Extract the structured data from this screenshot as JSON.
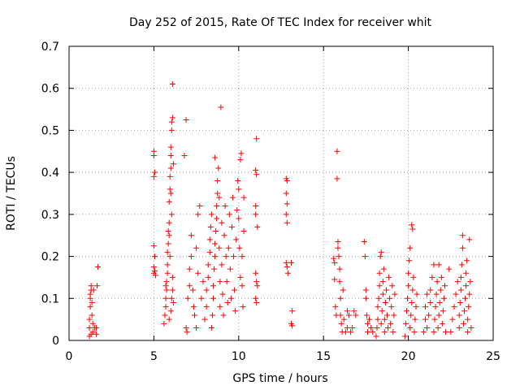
{
  "chart_data": {
    "type": "scatter",
    "title": "Day 252 of 2015, Rate Of TEC Index for receiver whit",
    "xlabel": "GPS time / hours",
    "ylabel": "ROTI / TECUs",
    "xlim": [
      0,
      25
    ],
    "ylim": [
      0,
      0.7
    ],
    "x_ticks": [
      "0",
      "5",
      "10",
      "15",
      "20",
      "25"
    ],
    "y_ticks": [
      "0",
      "0.1",
      "0.2",
      "0.3",
      "0.4",
      "0.5",
      "0.6",
      "0.7"
    ],
    "grid": true,
    "marker": "+",
    "colors": {
      "points": "#ff0000",
      "grid": "#a0a0a0",
      "axes": "#000000"
    },
    "points": [
      [
        1.2,
        0.01
      ],
      [
        1.2,
        0.03
      ],
      [
        1.2,
        0.05
      ],
      [
        1.25,
        0.08
      ],
      [
        1.25,
        0.1
      ],
      [
        1.3,
        0.12
      ],
      [
        1.3,
        0.13
      ],
      [
        1.35,
        0.09
      ],
      [
        1.35,
        0.06
      ],
      [
        1.4,
        0.04
      ],
      [
        1.4,
        0.02
      ],
      [
        1.3,
        0.015
      ],
      [
        1.25,
        0.11
      ],
      [
        1.45,
        0.12
      ],
      [
        1.5,
        0.03
      ],
      [
        1.6,
        0.015
      ],
      [
        1.6,
        0.03
      ],
      [
        1.65,
        0.13
      ],
      [
        1.7,
        0.175
      ],
      [
        5.0,
        0.45
      ],
      [
        5.0,
        0.44
      ],
      [
        5.0,
        0.39
      ],
      [
        5.05,
        0.4
      ],
      [
        5.0,
        0.225
      ],
      [
        5.05,
        0.2
      ],
      [
        5.0,
        0.175
      ],
      [
        5.05,
        0.165
      ],
      [
        5.0,
        0.16
      ],
      [
        5.1,
        0.155
      ],
      [
        5.6,
        0.04
      ],
      [
        5.65,
        0.06
      ],
      [
        5.7,
        0.08
      ],
      [
        5.7,
        0.1
      ],
      [
        5.75,
        0.12
      ],
      [
        5.75,
        0.14
      ],
      [
        5.8,
        0.16
      ],
      [
        5.8,
        0.18
      ],
      [
        5.8,
        0.21
      ],
      [
        5.85,
        0.23
      ],
      [
        5.85,
        0.26
      ],
      [
        5.9,
        0.28
      ],
      [
        5.9,
        0.33
      ],
      [
        5.95,
        0.36
      ],
      [
        5.95,
        0.39
      ],
      [
        6.0,
        0.41
      ],
      [
        6.0,
        0.44
      ],
      [
        6.0,
        0.46
      ],
      [
        6.05,
        0.5
      ],
      [
        6.05,
        0.52
      ],
      [
        6.1,
        0.53
      ],
      [
        6.1,
        0.61
      ],
      [
        6.0,
        0.35
      ],
      [
        6.05,
        0.3
      ],
      [
        5.9,
        0.25
      ],
      [
        5.95,
        0.2
      ],
      [
        6.1,
        0.15
      ],
      [
        6.05,
        0.1
      ],
      [
        6.0,
        0.07
      ],
      [
        5.9,
        0.05
      ],
      [
        6.1,
        0.12
      ],
      [
        5.7,
        0.13
      ],
      [
        6.15,
        0.09
      ],
      [
        6.15,
        0.42
      ],
      [
        6.8,
        0.44
      ],
      [
        6.9,
        0.525
      ],
      [
        6.9,
        0.03
      ],
      [
        6.95,
        0.02
      ],
      [
        7.0,
        0.1
      ],
      [
        7.1,
        0.13
      ],
      [
        7.1,
        0.17
      ],
      [
        7.2,
        0.2
      ],
      [
        7.2,
        0.25
      ],
      [
        7.3,
        0.12
      ],
      [
        7.35,
        0.08
      ],
      [
        7.4,
        0.06
      ],
      [
        7.5,
        0.03
      ],
      [
        7.6,
        0.3
      ],
      [
        7.7,
        0.32
      ],
      [
        7.5,
        0.22
      ],
      [
        7.6,
        0.16
      ],
      [
        7.8,
        0.1
      ],
      [
        7.9,
        0.14
      ],
      [
        8.0,
        0.05
      ],
      [
        8.1,
        0.08
      ],
      [
        8.1,
        0.12
      ],
      [
        8.2,
        0.15
      ],
      [
        8.2,
        0.18
      ],
      [
        8.3,
        0.21
      ],
      [
        8.3,
        0.24
      ],
      [
        8.35,
        0.27
      ],
      [
        8.4,
        0.3
      ],
      [
        8.4,
        0.03
      ],
      [
        8.45,
        0.06
      ],
      [
        8.5,
        0.1
      ],
      [
        8.5,
        0.13
      ],
      [
        8.55,
        0.17
      ],
      [
        8.6,
        0.2
      ],
      [
        8.6,
        0.23
      ],
      [
        8.65,
        0.26
      ],
      [
        8.7,
        0.29
      ],
      [
        8.7,
        0.32
      ],
      [
        8.75,
        0.35
      ],
      [
        8.75,
        0.38
      ],
      [
        8.8,
        0.41
      ],
      [
        8.6,
        0.435
      ],
      [
        8.85,
        0.34
      ],
      [
        8.85,
        0.22
      ],
      [
        8.9,
        0.14
      ],
      [
        8.9,
        0.08
      ],
      [
        8.95,
        0.555
      ],
      [
        9.0,
        0.28
      ],
      [
        9.0,
        0.18
      ],
      [
        9.05,
        0.11
      ],
      [
        9.1,
        0.06
      ],
      [
        9.15,
        0.25
      ],
      [
        9.2,
        0.32
      ],
      [
        9.25,
        0.2
      ],
      [
        9.3,
        0.14
      ],
      [
        9.35,
        0.09
      ],
      [
        9.4,
        0.22
      ],
      [
        9.45,
        0.3
      ],
      [
        9.5,
        0.17
      ],
      [
        9.55,
        0.1
      ],
      [
        9.6,
        0.27
      ],
      [
        9.65,
        0.34
      ],
      [
        9.7,
        0.2
      ],
      [
        9.75,
        0.12
      ],
      [
        9.8,
        0.07
      ],
      [
        9.85,
        0.24
      ],
      [
        9.9,
        0.31
      ],
      [
        9.95,
        0.38
      ],
      [
        10.0,
        0.36
      ],
      [
        10.0,
        0.29
      ],
      [
        10.05,
        0.22
      ],
      [
        10.1,
        0.15
      ],
      [
        10.1,
        0.43
      ],
      [
        10.15,
        0.445
      ],
      [
        10.2,
        0.2
      ],
      [
        10.2,
        0.13
      ],
      [
        10.25,
        0.08
      ],
      [
        10.3,
        0.26
      ],
      [
        10.3,
        0.34
      ],
      [
        11.05,
        0.48
      ],
      [
        11.0,
        0.405
      ],
      [
        11.05,
        0.395
      ],
      [
        11.0,
        0.32
      ],
      [
        11.0,
        0.3
      ],
      [
        11.1,
        0.27
      ],
      [
        11.0,
        0.16
      ],
      [
        11.05,
        0.14
      ],
      [
        11.1,
        0.13
      ],
      [
        11.0,
        0.1
      ],
      [
        11.05,
        0.09
      ],
      [
        12.8,
        0.385
      ],
      [
        12.85,
        0.38
      ],
      [
        12.8,
        0.35
      ],
      [
        12.85,
        0.325
      ],
      [
        12.8,
        0.3
      ],
      [
        12.85,
        0.28
      ],
      [
        12.8,
        0.185
      ],
      [
        12.85,
        0.175
      ],
      [
        12.9,
        0.16
      ],
      [
        13.1,
        0.185
      ],
      [
        13.15,
        0.07
      ],
      [
        13.1,
        0.04
      ],
      [
        13.15,
        0.035
      ],
      [
        15.6,
        0.195
      ],
      [
        15.65,
        0.185
      ],
      [
        15.65,
        0.145
      ],
      [
        15.7,
        0.08
      ],
      [
        15.75,
        0.06
      ],
      [
        15.8,
        0.45
      ],
      [
        15.8,
        0.385
      ],
      [
        15.85,
        0.235
      ],
      [
        15.85,
        0.22
      ],
      [
        15.9,
        0.2
      ],
      [
        15.95,
        0.17
      ],
      [
        15.95,
        0.14
      ],
      [
        16.0,
        0.1
      ],
      [
        16.0,
        0.06
      ],
      [
        16.05,
        0.04
      ],
      [
        16.1,
        0.02
      ],
      [
        16.15,
        0.12
      ],
      [
        16.2,
        0.05
      ],
      [
        16.3,
        0.02
      ],
      [
        16.4,
        0.03
      ],
      [
        16.4,
        0.07
      ],
      [
        16.5,
        0.06
      ],
      [
        16.6,
        0.02
      ],
      [
        16.7,
        0.03
      ],
      [
        16.8,
        0.07
      ],
      [
        16.9,
        0.06
      ],
      [
        17.4,
        0.235
      ],
      [
        17.45,
        0.2
      ],
      [
        17.5,
        0.12
      ],
      [
        17.5,
        0.1
      ],
      [
        17.55,
        0.06
      ],
      [
        17.6,
        0.04
      ],
      [
        17.6,
        0.02
      ],
      [
        17.7,
        0.05
      ],
      [
        17.8,
        0.03
      ],
      [
        17.9,
        0.02
      ],
      [
        18.1,
        0.01
      ],
      [
        18.15,
        0.03
      ],
      [
        18.2,
        0.05
      ],
      [
        18.2,
        0.08
      ],
      [
        18.25,
        0.1
      ],
      [
        18.3,
        0.13
      ],
      [
        18.3,
        0.16
      ],
      [
        18.35,
        0.2
      ],
      [
        18.4,
        0.21
      ],
      [
        18.4,
        0.04
      ],
      [
        18.45,
        0.07
      ],
      [
        18.5,
        0.11
      ],
      [
        18.5,
        0.14
      ],
      [
        18.55,
        0.17
      ],
      [
        18.6,
        0.02
      ],
      [
        18.6,
        0.05
      ],
      [
        18.65,
        0.09
      ],
      [
        18.7,
        0.12
      ],
      [
        18.75,
        0.06
      ],
      [
        18.8,
        0.03
      ],
      [
        18.85,
        0.15
      ],
      [
        18.9,
        0.1
      ],
      [
        18.95,
        0.04
      ],
      [
        19.0,
        0.08
      ],
      [
        19.05,
        0.13
      ],
      [
        19.1,
        0.02
      ],
      [
        19.15,
        0.06
      ],
      [
        19.2,
        0.11
      ],
      [
        19.8,
        0.01
      ],
      [
        19.85,
        0.04
      ],
      [
        19.9,
        0.07
      ],
      [
        19.95,
        0.1
      ],
      [
        20.0,
        0.13
      ],
      [
        20.0,
        0.16
      ],
      [
        20.05,
        0.19
      ],
      [
        20.1,
        0.22
      ],
      [
        20.1,
        0.03
      ],
      [
        20.15,
        0.06
      ],
      [
        20.2,
        0.09
      ],
      [
        20.2,
        0.275
      ],
      [
        20.25,
        0.265
      ],
      [
        20.25,
        0.12
      ],
      [
        20.3,
        0.15
      ],
      [
        20.35,
        0.02
      ],
      [
        20.4,
        0.05
      ],
      [
        20.45,
        0.08
      ],
      [
        20.5,
        0.11
      ],
      [
        20.9,
        0.02
      ],
      [
        21.0,
        0.05
      ],
      [
        21.0,
        0.08
      ],
      [
        21.1,
        0.11
      ],
      [
        21.1,
        0.03
      ],
      [
        21.2,
        0.06
      ],
      [
        21.3,
        0.09
      ],
      [
        21.3,
        0.12
      ],
      [
        21.4,
        0.15
      ],
      [
        21.5,
        0.18
      ],
      [
        21.5,
        0.02
      ],
      [
        21.55,
        0.05
      ],
      [
        21.6,
        0.08
      ],
      [
        21.65,
        0.11
      ],
      [
        21.7,
        0.14
      ],
      [
        21.75,
        0.03
      ],
      [
        21.8,
        0.06
      ],
      [
        21.85,
        0.09
      ],
      [
        21.9,
        0.12
      ],
      [
        21.95,
        0.15
      ],
      [
        22.0,
        0.04
      ],
      [
        22.05,
        0.07
      ],
      [
        22.1,
        0.1
      ],
      [
        22.15,
        0.13
      ],
      [
        22.2,
        0.02
      ],
      [
        21.8,
        0.18
      ],
      [
        22.4,
        0.17
      ],
      [
        22.5,
        0.02
      ],
      [
        22.6,
        0.05
      ],
      [
        22.7,
        0.08
      ],
      [
        22.8,
        0.11
      ],
      [
        22.9,
        0.14
      ],
      [
        23.0,
        0.03
      ],
      [
        23.0,
        0.06
      ],
      [
        23.05,
        0.09
      ],
      [
        23.1,
        0.12
      ],
      [
        23.1,
        0.15
      ],
      [
        23.15,
        0.18
      ],
      [
        23.2,
        0.25
      ],
      [
        23.2,
        0.22
      ],
      [
        23.25,
        0.04
      ],
      [
        23.3,
        0.07
      ],
      [
        23.35,
        0.1
      ],
      [
        23.4,
        0.13
      ],
      [
        23.4,
        0.16
      ],
      [
        23.45,
        0.19
      ],
      [
        23.5,
        0.02
      ],
      [
        23.5,
        0.05
      ],
      [
        23.55,
        0.08
      ],
      [
        23.6,
        0.11
      ],
      [
        23.6,
        0.24
      ],
      [
        23.65,
        0.14
      ],
      [
        23.7,
        0.03
      ]
    ]
  }
}
